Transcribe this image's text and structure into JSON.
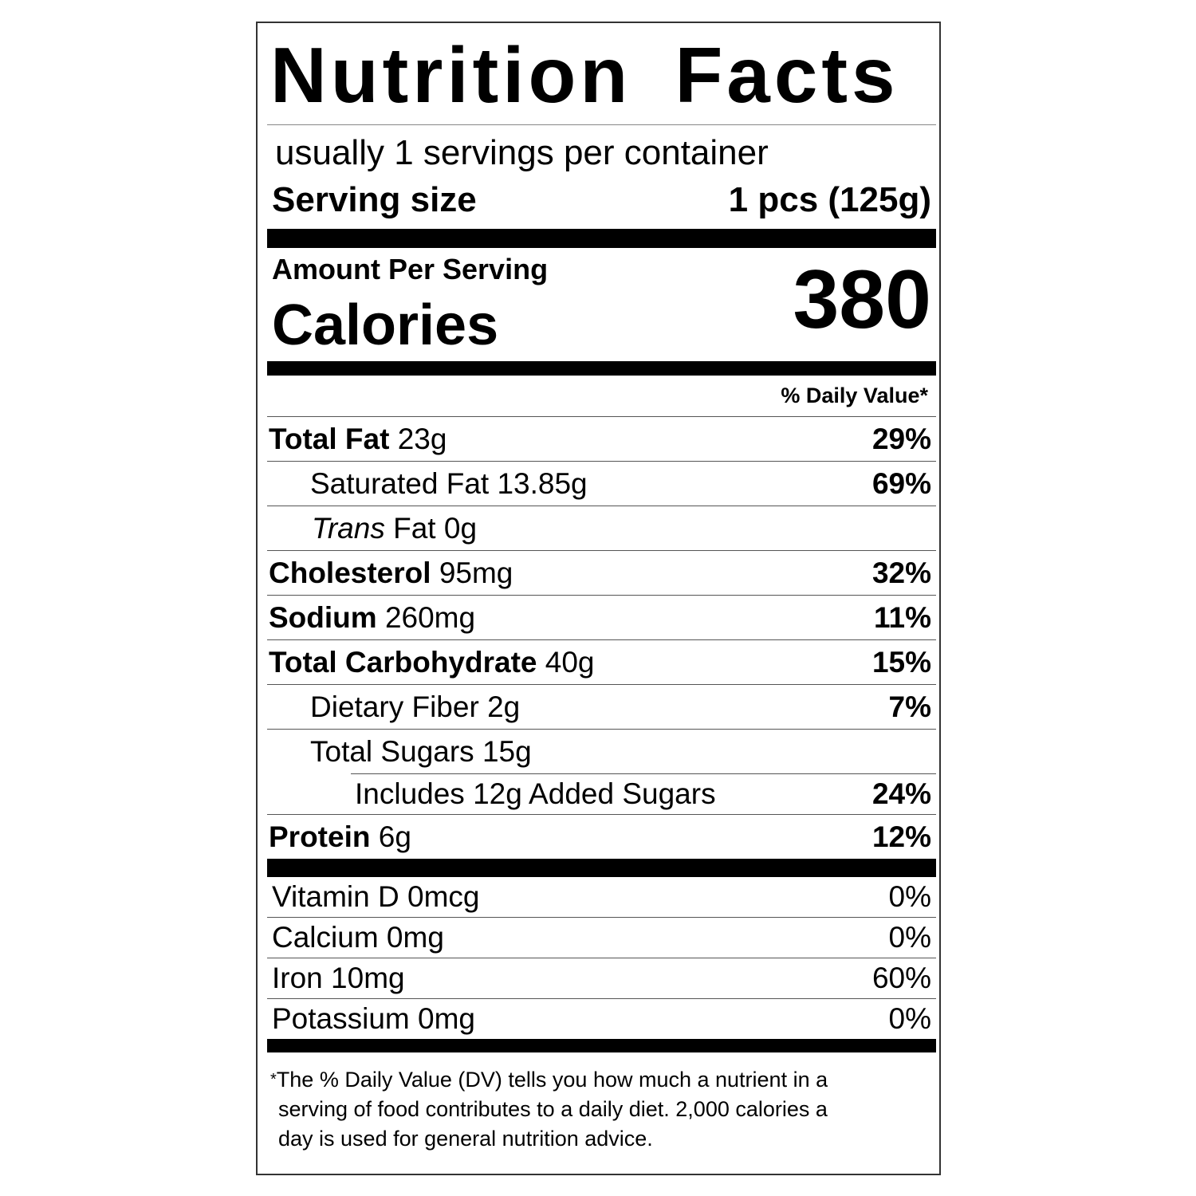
{
  "title": "Nutrition Facts",
  "servings_per_container": "usually 1 servings per container",
  "serving_size": {
    "label": "Serving size",
    "value": "1 pcs (125g)"
  },
  "amount_per_serving": "Amount Per Serving",
  "calories": {
    "label": "Calories",
    "value": "380"
  },
  "daily_value_header": "% Daily Value*",
  "nutrients": [
    {
      "name": "Total Fat",
      "amount": "23g",
      "dv": "29%"
    },
    {
      "name": "Saturated Fat",
      "amount": "13.85g",
      "dv": "69%"
    },
    {
      "name_italic": "Trans",
      "name": "Fat",
      "amount": "0g",
      "dv": ""
    },
    {
      "name": "Cholesterol",
      "amount": "95mg",
      "dv": "32%"
    },
    {
      "name": "Sodium",
      "amount": "260mg",
      "dv": "11%"
    },
    {
      "name": "Total Carbohydrate",
      "amount": "40g",
      "dv": "15%"
    },
    {
      "name": "Dietary Fiber",
      "amount": "2g",
      "dv": "7%"
    },
    {
      "name": "Total Sugars",
      "amount": "15g",
      "dv": ""
    },
    {
      "name": "Includes 12g Added Sugars",
      "amount": "",
      "dv": "24%"
    },
    {
      "name": "Protein",
      "amount": "6g",
      "dv": "12%"
    }
  ],
  "vitamins": [
    {
      "name": "Vitamin D 0mcg",
      "dv": "0%"
    },
    {
      "name": "Calcium 0mg",
      "dv": "0%"
    },
    {
      "name": "Iron 10mg",
      "dv": "60%"
    },
    {
      "name": "Potassium 0mg",
      "dv": "0%"
    }
  ],
  "footnote": {
    "star": "*",
    "line1": "The % Daily Value (DV) tells you how much a nutrient in a",
    "line2": "serving of food contributes to a daily diet. 2,000 calories a",
    "line3": "day is used for general nutrition advice."
  }
}
